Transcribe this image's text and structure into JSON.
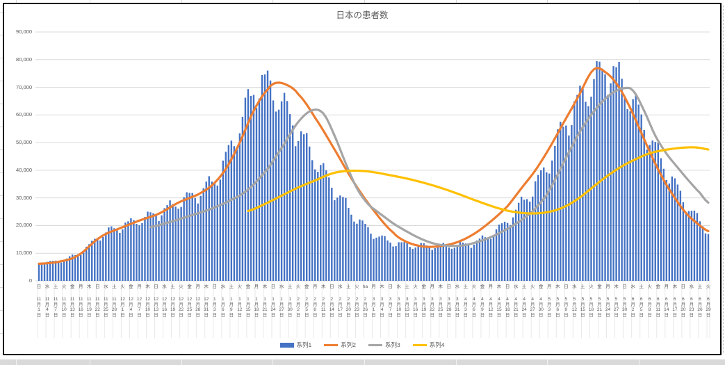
{
  "chart_data": {
    "type": "combo",
    "title": "日本の患者数",
    "grid": "horizontal-on",
    "legend_position": "bottom",
    "gridline_color": "#D9D9D9",
    "tick_stripe_color": "#e8e8e8",
    "axis_text_color": "#595959",
    "title_color": "#595959",
    "y_axis": {
      "min": 0,
      "max": 90000,
      "step": 10000,
      "tick_labels": [
        "0",
        "10,000",
        "20,000",
        "30,000",
        "40,000",
        "50,000",
        "60,000",
        "70,000",
        "80,000",
        "90,000"
      ]
    },
    "x_axis": {
      "start_month": 11,
      "start_day": 1,
      "start_dow": "日",
      "num_days": 241,
      "label_interval_days": 3,
      "dow_cycle": [
        "日",
        "月",
        "火",
        "水",
        "木",
        "金",
        "土"
      ],
      "month_numbers": [
        11,
        12,
        1,
        2,
        3,
        4,
        5,
        6
      ],
      "month_lengths": [
        30,
        31,
        31,
        28,
        31,
        30,
        31,
        30
      ],
      "month_suffix": "月",
      "day_suffix": "日",
      "first_label": "日 11月1日",
      "last_label": "火 6月29日",
      "label_overrides": [
        {
          "label_index": 39,
          "dow_text": "ha"
        }
      ]
    },
    "legend": [
      {
        "label": "系列1",
        "color": "#4472C4",
        "swatch": "bar"
      },
      {
        "label": "系列2",
        "color": "#ED7D31",
        "swatch": "line"
      },
      {
        "label": "系列3",
        "color": "#A5A5A5",
        "swatch": "line"
      },
      {
        "label": "系列4",
        "color": "#FFC000",
        "swatch": "line"
      }
    ],
    "series": {
      "bars": {
        "name": "系列1",
        "color": "#4472C4",
        "type": "bar",
        "weekly_pattern": [
          0.97,
          0.9,
          0.94,
          1.03,
          1.07,
          1.08,
          1.03
        ],
        "anchor_points": [
          [
            0,
            6400
          ],
          [
            4,
            6700
          ],
          [
            7,
            7200
          ],
          [
            11,
            8300
          ],
          [
            14,
            9800
          ],
          [
            18,
            12500
          ],
          [
            21,
            15500
          ],
          [
            25,
            17800
          ],
          [
            29,
            19500
          ],
          [
            33,
            20800
          ],
          [
            36,
            22000
          ],
          [
            40,
            23300
          ],
          [
            43,
            24500
          ],
          [
            47,
            26500
          ],
          [
            50,
            28500
          ],
          [
            54,
            30000
          ],
          [
            57,
            31500
          ],
          [
            61,
            34500
          ],
          [
            64,
            38000
          ],
          [
            68,
            46000
          ],
          [
            72,
            56000
          ],
          [
            76,
            66000
          ],
          [
            79,
            70800
          ],
          [
            83,
            69500
          ],
          [
            87,
            64000
          ],
          [
            92,
            55000
          ],
          [
            99,
            44000
          ],
          [
            106,
            33000
          ],
          [
            113,
            23500
          ],
          [
            120,
            17000
          ],
          [
            127,
            13800
          ],
          [
            134,
            12800
          ],
          [
            141,
            12600
          ],
          [
            148,
            12700
          ],
          [
            155,
            13500
          ],
          [
            161,
            16000
          ],
          [
            167,
            20500
          ],
          [
            172,
            26500
          ],
          [
            177,
            33000
          ],
          [
            182,
            41000
          ],
          [
            187,
            53000
          ],
          [
            192,
            62000
          ],
          [
            196,
            68000
          ],
          [
            200,
            73000
          ],
          [
            204,
            76000
          ],
          [
            207,
            73500
          ],
          [
            210,
            69500
          ],
          [
            213,
            64000
          ],
          [
            216,
            58000
          ],
          [
            219,
            51500
          ],
          [
            222,
            45500
          ],
          [
            225,
            40000
          ],
          [
            228,
            34500
          ],
          [
            231,
            29500
          ],
          [
            234,
            25000
          ],
          [
            237,
            21300
          ],
          [
            240,
            18300
          ]
        ]
      },
      "line2": {
        "name": "系列2",
        "color": "#ED7D31",
        "type": "line",
        "anchor_points": [
          [
            0,
            6200
          ],
          [
            7,
            6900
          ],
          [
            14,
            9200
          ],
          [
            22,
            15800
          ],
          [
            29,
            19000
          ],
          [
            36,
            21800
          ],
          [
            43,
            24300
          ],
          [
            50,
            28300
          ],
          [
            57,
            31200
          ],
          [
            62,
            34500
          ],
          [
            67,
            40500
          ],
          [
            72,
            50000
          ],
          [
            77,
            61500
          ],
          [
            82,
            69200
          ],
          [
            85,
            71600
          ],
          [
            89,
            70800
          ],
          [
            93,
            67500
          ],
          [
            99,
            59000
          ],
          [
            106,
            47500
          ],
          [
            113,
            35500
          ],
          [
            120,
            25500
          ],
          [
            127,
            17500
          ],
          [
            132,
            14000
          ],
          [
            138,
            12400
          ],
          [
            144,
            12600
          ],
          [
            150,
            14000
          ],
          [
            156,
            17000
          ],
          [
            162,
            21500
          ],
          [
            168,
            27000
          ],
          [
            173,
            33500
          ],
          [
            178,
            40000
          ],
          [
            183,
            48000
          ],
          [
            188,
            57000
          ],
          [
            193,
            66000
          ],
          [
            199,
            76500
          ],
          [
            204,
            74800
          ],
          [
            208,
            70000
          ],
          [
            212,
            62500
          ],
          [
            216,
            53500
          ],
          [
            220,
            44500
          ],
          [
            224,
            36500
          ],
          [
            228,
            30000
          ],
          [
            232,
            24500
          ],
          [
            236,
            20800
          ],
          [
            240,
            18000
          ]
        ]
      },
      "line3": {
        "name": "系列3",
        "color": "#A5A5A5",
        "type": "line",
        "anchor_points": [
          [
            40,
            19500
          ],
          [
            47,
            21300
          ],
          [
            54,
            23500
          ],
          [
            61,
            25800
          ],
          [
            68,
            28800
          ],
          [
            75,
            33000
          ],
          [
            82,
            40500
          ],
          [
            88,
            49500
          ],
          [
            93,
            57500
          ],
          [
            98,
            61700
          ],
          [
            102,
            60500
          ],
          [
            106,
            52500
          ],
          [
            110,
            42500
          ],
          [
            114,
            33500
          ],
          [
            118,
            27800
          ],
          [
            122,
            24500
          ],
          [
            127,
            20800
          ],
          [
            132,
            17800
          ],
          [
            137,
            15200
          ],
          [
            142,
            13400
          ],
          [
            147,
            12700
          ],
          [
            152,
            12800
          ],
          [
            157,
            14000
          ],
          [
            162,
            15800
          ],
          [
            167,
            18300
          ],
          [
            172,
            21300
          ],
          [
            177,
            25200
          ],
          [
            182,
            31000
          ],
          [
            186,
            38500
          ],
          [
            190,
            46500
          ],
          [
            194,
            54000
          ],
          [
            198,
            60000
          ],
          [
            202,
            64800
          ],
          [
            206,
            68200
          ],
          [
            210,
            69700
          ],
          [
            213,
            68800
          ],
          [
            217,
            61500
          ],
          [
            221,
            52500
          ],
          [
            225,
            46000
          ],
          [
            229,
            41000
          ],
          [
            233,
            36200
          ],
          [
            237,
            31800
          ],
          [
            240,
            28300
          ]
        ]
      },
      "line4": {
        "name": "系列4",
        "color": "#FFC000",
        "type": "line",
        "anchor_points": [
          [
            75,
            25300
          ],
          [
            81,
            27800
          ],
          [
            87,
            30800
          ],
          [
            93,
            33800
          ],
          [
            99,
            36300
          ],
          [
            105,
            38800
          ],
          [
            110,
            39700
          ],
          [
            115,
            39800
          ],
          [
            120,
            39300
          ],
          [
            126,
            38200
          ],
          [
            131,
            37200
          ],
          [
            136,
            36000
          ],
          [
            141,
            34600
          ],
          [
            146,
            33000
          ],
          [
            151,
            31200
          ],
          [
            156,
            29300
          ],
          [
            161,
            27500
          ],
          [
            166,
            25900
          ],
          [
            170,
            25000
          ],
          [
            174,
            24500
          ],
          [
            178,
            24400
          ],
          [
            182,
            24800
          ],
          [
            186,
            25800
          ],
          [
            190,
            27600
          ],
          [
            194,
            30200
          ],
          [
            198,
            33400
          ],
          [
            202,
            36600
          ],
          [
            206,
            39500
          ],
          [
            210,
            42000
          ],
          [
            214,
            44000
          ],
          [
            218,
            45800
          ],
          [
            222,
            46900
          ],
          [
            226,
            47600
          ],
          [
            230,
            48100
          ],
          [
            234,
            48300
          ],
          [
            237,
            48100
          ],
          [
            240,
            47500
          ]
        ]
      }
    }
  }
}
